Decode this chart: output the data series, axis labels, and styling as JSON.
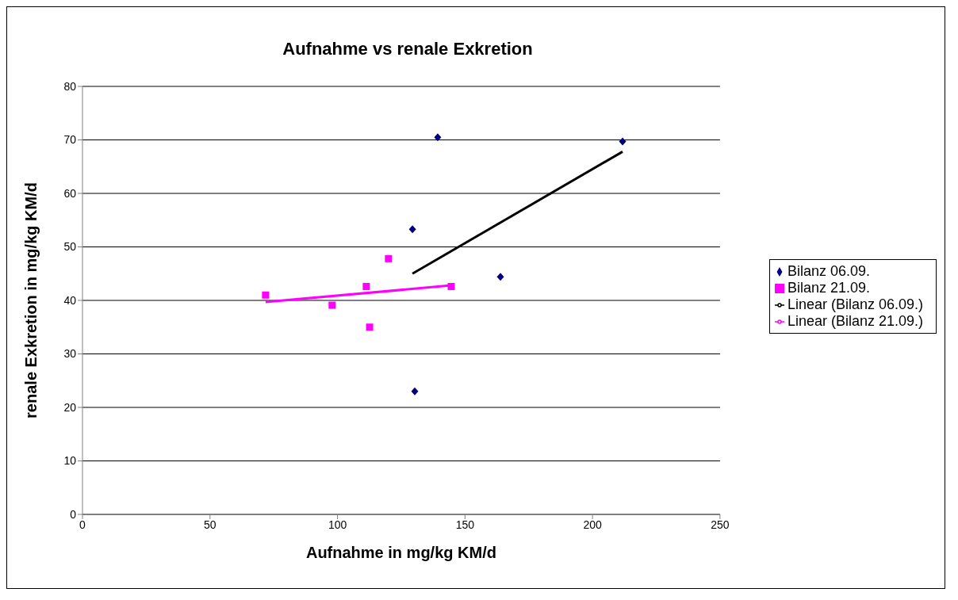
{
  "chart_data": {
    "type": "scatter",
    "title": "Aufnahme vs renale Exkretion",
    "xlabel": "Aufnahme in mg/kg KM/d",
    "ylabel": "renale Exkretion in mg/kg KM/d",
    "xlim": [
      0,
      250
    ],
    "xticks": [
      0,
      50,
      100,
      150,
      200,
      250
    ],
    "ylim": [
      0,
      80
    ],
    "yticks": [
      0,
      10,
      20,
      30,
      40,
      50,
      60,
      70,
      80
    ],
    "grid": "y",
    "legend": "right",
    "series": [
      {
        "name": "Bilanz 06.09.",
        "marker": "diamond",
        "color": "#000080",
        "x": [
          129.4,
          139.3,
          130.3,
          163.9,
          211.8
        ],
        "values": [
          53.3,
          70.5,
          23.0,
          44.4,
          69.7
        ]
      },
      {
        "name": "Bilanz 21.09.",
        "marker": "square",
        "color": "#ff00ff",
        "x": [
          71.8,
          97.9,
          111.3,
          120.0,
          112.6,
          144.6
        ],
        "values": [
          41.0,
          39.1,
          42.6,
          47.8,
          35.0,
          42.6
        ]
      },
      {
        "name": "Linear (Bilanz 06.09.)",
        "type": "line",
        "line_style": "solid",
        "color": "#000000",
        "x": [
          129.4,
          211.8
        ],
        "values": [
          45.0,
          67.8
        ]
      },
      {
        "name": "Linear (Bilanz 21.09.)",
        "type": "line",
        "line_style": "solid",
        "color": "#ff00ff",
        "x": [
          71.8,
          144.6
        ],
        "values": [
          39.7,
          42.8
        ]
      }
    ]
  }
}
